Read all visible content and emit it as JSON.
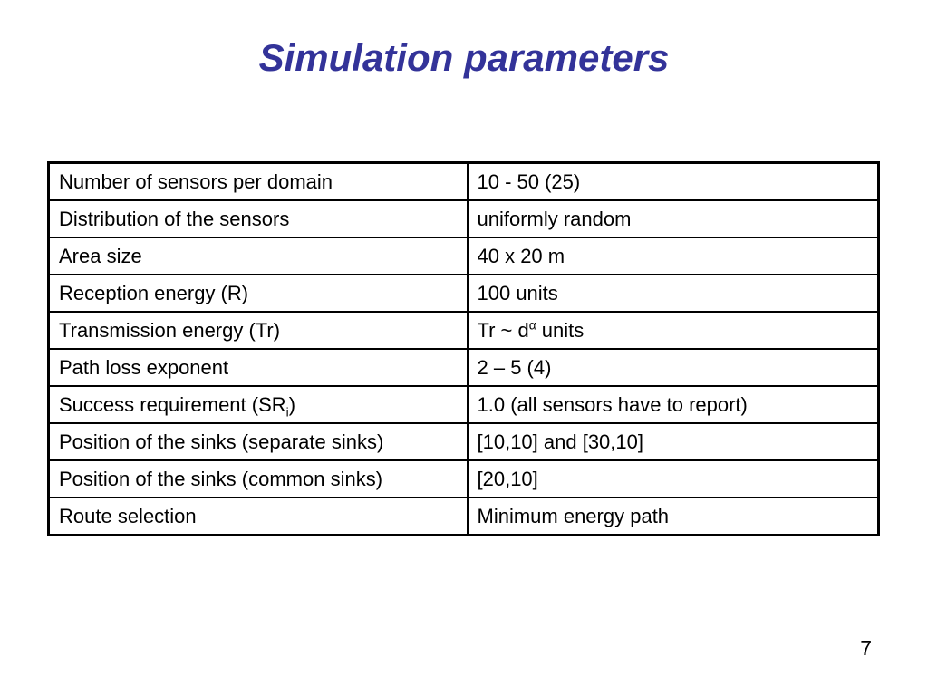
{
  "slide": {
    "title": "Simulation parameters",
    "page_number": "7"
  },
  "colors": {
    "title": "#333399",
    "table_border": "#000000",
    "background": "#ffffff"
  },
  "table": {
    "rows": [
      {
        "label": [
          {
            "t": "Number of sensors per domain"
          }
        ],
        "value": [
          {
            "t": "10 - 50 (25)"
          }
        ]
      },
      {
        "label": [
          {
            "t": "Distribution of the sensors"
          }
        ],
        "value": [
          {
            "t": "uniformly random"
          }
        ]
      },
      {
        "label": [
          {
            "t": "Area size"
          }
        ],
        "value": [
          {
            "t": "40 x 20 m"
          }
        ]
      },
      {
        "label": [
          {
            "t": "Reception energy (R)"
          }
        ],
        "value": [
          {
            "t": "100 units"
          }
        ]
      },
      {
        "label": [
          {
            "t": "Transmission energy (Tr)"
          }
        ],
        "value": [
          {
            "t": "Tr ~ d"
          },
          {
            "t": "α",
            "style": "sup"
          },
          {
            "t": " units"
          }
        ]
      },
      {
        "label": [
          {
            "t": "Path loss exponent"
          }
        ],
        "value": [
          {
            "t": "2 – 5 (4)"
          }
        ]
      },
      {
        "label": [
          {
            "t": "Success requirement (SR"
          },
          {
            "t": "i",
            "style": "sub"
          },
          {
            "t": ")"
          }
        ],
        "value": [
          {
            "t": "1.0 (all sensors have to report)"
          }
        ]
      },
      {
        "label": [
          {
            "t": "Position of the sinks (separate sinks)"
          }
        ],
        "value": [
          {
            "t": "[10,10] and [30,10]"
          }
        ]
      },
      {
        "label": [
          {
            "t": "Position of the sinks (common sinks)"
          }
        ],
        "value": [
          {
            "t": "[20,10]"
          }
        ]
      },
      {
        "label": [
          {
            "t": "Route selection"
          }
        ],
        "value": [
          {
            "t": "Minimum energy path"
          }
        ]
      }
    ]
  }
}
